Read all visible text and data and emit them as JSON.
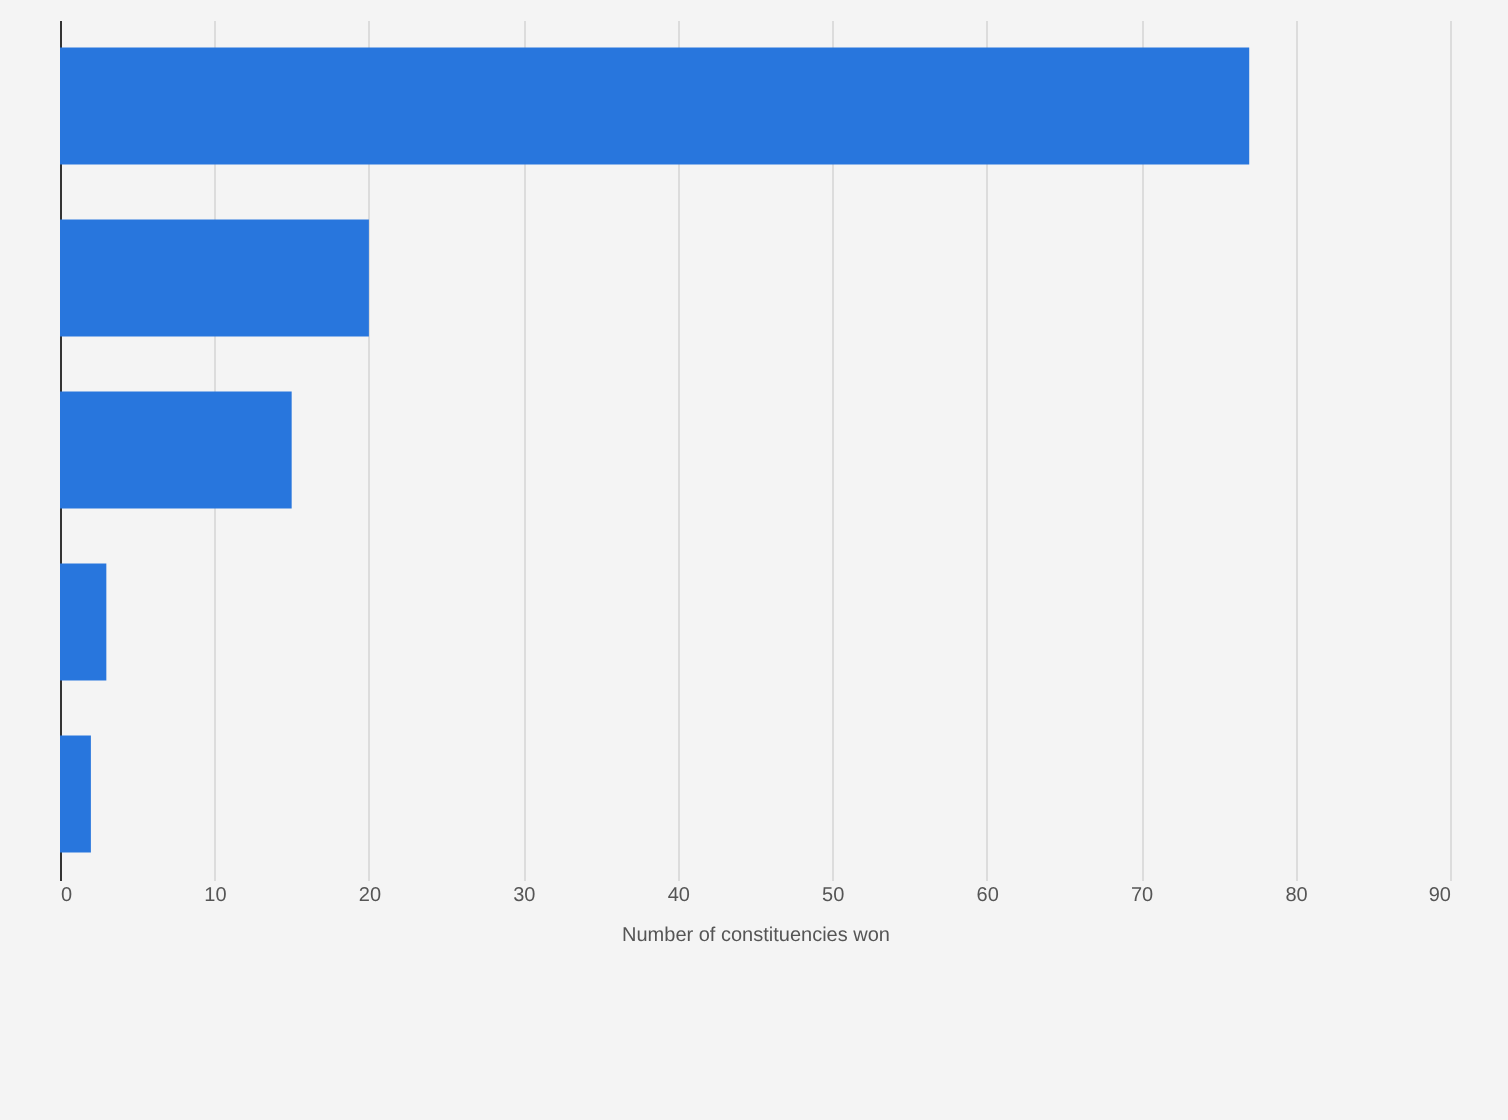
{
  "chart_data": {
    "type": "bar",
    "orientation": "horizontal",
    "xlabel": "Number of constituencies won",
    "categories": [
      null,
      null,
      null,
      null,
      null
    ],
    "values": [
      77,
      20,
      15,
      3,
      2
    ],
    "color": "#2876dd",
    "xlim": [
      0,
      90
    ],
    "xticks": [
      0,
      10,
      20,
      30,
      40,
      50,
      60,
      70,
      80,
      90
    ],
    "grid": "x",
    "tick_labels": "x"
  }
}
